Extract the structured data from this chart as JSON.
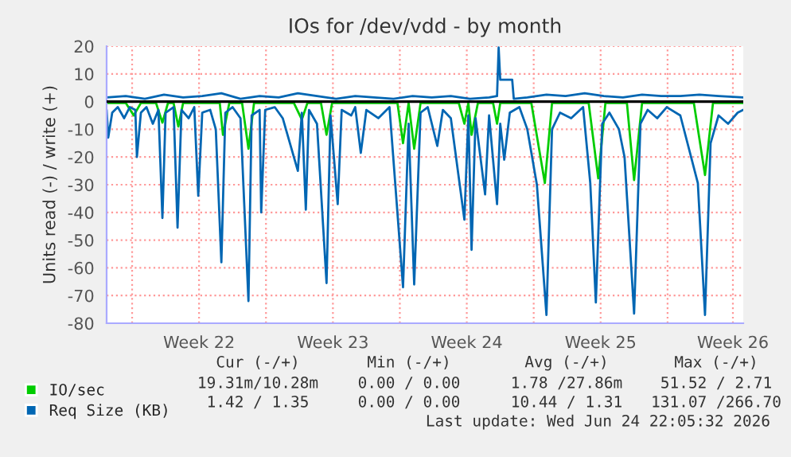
{
  "chart_data": {
    "type": "line",
    "title": "IOs for /dev/vdd - by month",
    "ylabel": "Units read (-) / write (+)",
    "xlim": [
      "2026-05-23T16:00",
      "2026-06-25T23:00"
    ],
    "xticks": [
      {
        "value": "2026-05-25",
        "label": null
      },
      {
        "value": "2026-05-28T12:00",
        "label": "Week 22"
      },
      {
        "value": "2026-06-01",
        "label": null
      },
      {
        "value": "2026-06-04T12:00",
        "label": "Week 23"
      },
      {
        "value": "2026-06-08",
        "label": null
      },
      {
        "value": "2026-06-11T12:00",
        "label": "Week 24"
      },
      {
        "value": "2026-06-15",
        "label": null
      },
      {
        "value": "2026-06-18T12:00",
        "label": "Week 25"
      },
      {
        "value": "2026-06-22",
        "label": null
      },
      {
        "value": "2026-06-25T10:00",
        "label": "Week 26"
      }
    ],
    "ylim": [
      -80,
      20
    ],
    "yticks": [
      -80,
      -70,
      -60,
      -50,
      -40,
      -30,
      -20,
      -10,
      0,
      10,
      20
    ],
    "grid": true,
    "legend": "bottom left",
    "ref_lines": [
      {
        "axis": "y",
        "value": 0,
        "label": null,
        "color": "#000000"
      }
    ],
    "series": [
      {
        "name": "IO/sec",
        "color": "#00cc00",
        "x": [
          "2026-05-23T16:00",
          "2026-05-24T16:00",
          "2026-05-25T02:00",
          "2026-05-25T11:00",
          "2026-05-26T06:00",
          "2026-05-26T14:00",
          "2026-05-26T21:00",
          "2026-05-27T04:00",
          "2026-05-27T10:00",
          "2026-05-27T16:00",
          "2026-05-29T04:00",
          "2026-05-29T14:00",
          "2026-05-29T18:00",
          "2026-05-30T02:00",
          "2026-05-30T18:00",
          "2026-05-31T02:00",
          "2026-05-31T09:00",
          "2026-06-02T11:00",
          "2026-06-02T21:00",
          "2026-06-03T04:00",
          "2026-06-03T21:00",
          "2026-06-04T04:00",
          "2026-06-04T11:00",
          "2026-06-07T21:00",
          "2026-06-08T04:00",
          "2026-06-08T11:00",
          "2026-06-08T18:00",
          "2026-06-09T02:00",
          "2026-06-11T02:00",
          "2026-06-11T09:00",
          "2026-06-11T14:00",
          "2026-06-11T18:00",
          "2026-06-12T02:00",
          "2026-06-12T21:00",
          "2026-06-13T02:00",
          "2026-06-13T06:00",
          "2026-06-14T21:00",
          "2026-06-15T14:00",
          "2026-06-15T23:00",
          "2026-06-17T21:00",
          "2026-06-18T09:00",
          "2026-06-18T18:00",
          "2026-06-19T21:00",
          "2026-06-20T06:00",
          "2026-06-20T16:00",
          "2026-06-23T09:00",
          "2026-06-23T23:00",
          "2026-06-24T09:00",
          "2026-06-25T23:00"
        ],
        "values": [
          -0.5,
          -0.5,
          -5,
          -0.5,
          -0.5,
          -7.6,
          -0.5,
          -0.5,
          -9,
          -0.5,
          -0.5,
          -0.5,
          -12,
          -0.5,
          -0.5,
          -17,
          -0.5,
          -0.5,
          -6.5,
          -0.5,
          -0.5,
          -12,
          -0.5,
          -0.5,
          -15,
          -0.5,
          -17,
          -0.5,
          -0.5,
          -8,
          -0.5,
          -12,
          -0.5,
          -0.5,
          -8,
          -0.5,
          -0.5,
          -29.4,
          -0.5,
          -0.5,
          -27.7,
          -0.5,
          -0.5,
          -28.3,
          -0.5,
          -0.5,
          -26.5,
          -0.5,
          -0.5
        ]
      },
      {
        "name": "Req Size (KB)",
        "color": "#0066b3",
        "x": [
          "2026-05-23T16:00",
          "2026-05-23T18:00",
          "2026-05-23T23:00",
          "2026-05-24T06:00",
          "2026-05-24T14:00",
          "2026-05-24T21:00",
          "2026-05-25T04:00",
          "2026-05-25T06:00",
          "2026-05-25T11:00",
          "2026-05-25T18:00",
          "2026-05-26T02:00",
          "2026-05-26T09:00",
          "2026-05-26T14:00",
          "2026-05-26T18:00",
          "2026-05-27T04:00",
          "2026-05-27T09:00",
          "2026-05-27T14:00",
          "2026-05-27T23:00",
          "2026-05-28T06:00",
          "2026-05-28T11:00",
          "2026-05-28T16:00",
          "2026-05-29T02:00",
          "2026-05-29T09:00",
          "2026-05-29T16:00",
          "2026-05-29T21:00",
          "2026-05-30T06:00",
          "2026-05-30T16:00",
          "2026-05-31T02:00",
          "2026-05-31T06:00",
          "2026-05-31T16:00",
          "2026-05-31T18:00",
          "2026-05-31T23:00",
          "2026-06-01T11:00",
          "2026-06-01T21:00",
          "2026-06-02T16:00",
          "2026-06-02T21:00",
          "2026-06-03T02:00",
          "2026-06-03T06:00",
          "2026-06-03T16:00",
          "2026-06-04T04:00",
          "2026-06-04T09:00",
          "2026-06-04T18:00",
          "2026-06-04T23:00",
          "2026-06-05T11:00",
          "2026-06-05T16:00",
          "2026-06-05T23:00",
          "2026-06-06T06:00",
          "2026-06-06T21:00",
          "2026-06-07T11:00",
          "2026-06-08T04:00",
          "2026-06-08T11:00",
          "2026-06-08T18:00",
          "2026-06-09T02:00",
          "2026-06-09T11:00",
          "2026-06-09T23:00",
          "2026-06-10T06:00",
          "2026-06-10T16:00",
          "2026-06-11T09:00",
          "2026-06-11T14:00",
          "2026-06-11T18:00",
          "2026-06-11T23:00",
          "2026-06-12T11:00",
          "2026-06-12T16:00",
          "2026-06-13T02:00",
          "2026-06-13T06:00",
          "2026-06-13T11:00",
          "2026-06-13T18:00",
          "2026-06-14T06:00",
          "2026-06-14T16:00",
          "2026-06-15T04:00",
          "2026-06-15T16:00",
          "2026-06-15T23:00",
          "2026-06-16T09:00",
          "2026-06-16T23:00",
          "2026-06-17T14:00",
          "2026-06-17T23:00",
          "2026-06-18T06:00",
          "2026-06-18T14:00",
          "2026-06-18T23:00",
          "2026-06-19T11:00",
          "2026-06-19T18:00",
          "2026-06-20T06:00",
          "2026-06-20T14:00",
          "2026-06-20T23:00",
          "2026-06-21T11:00",
          "2026-06-21T23:00",
          "2026-06-22T16:00",
          "2026-06-23T14:00",
          "2026-06-23T23:00",
          "2026-06-24T06:00",
          "2026-06-24T16:00",
          "2026-06-25T04:00",
          "2026-06-25T16:00",
          "2026-06-25T23:00"
        ],
        "values": [
          -3,
          -13,
          -4,
          -2,
          -6,
          -2,
          -3,
          -20,
          -4,
          -2,
          -8,
          -3,
          -42,
          -4,
          -2,
          -45.5,
          -3,
          -6,
          -2,
          -34,
          -4,
          -3,
          -10,
          -58,
          -4,
          -2,
          -6,
          -72,
          -5,
          -3,
          -40,
          -3,
          -2,
          -6,
          -25,
          -4,
          -39,
          -3,
          -8,
          -65.5,
          -5,
          -37,
          -3,
          -5,
          -2,
          -18.5,
          -3,
          -6,
          -2,
          -67,
          -8,
          -66,
          -4,
          -2,
          -16,
          -3,
          -6,
          -42.6,
          -5,
          -53.5,
          -6,
          -33.5,
          -5,
          -37,
          -8,
          -21,
          -4,
          -2,
          -10,
          -30,
          -77,
          -10,
          -4,
          -6,
          -2,
          -29.4,
          -72.5,
          -8,
          -4,
          -10,
          -20,
          -76.5,
          -8,
          -3,
          -6,
          -2,
          -5,
          -29.4,
          -77,
          -15,
          -5,
          -8,
          -4,
          -3
        ]
      },
      {
        "color": "#0066b3",
        "x": [
          "2026-05-23T16:00",
          "2026-05-24T16:00",
          "2026-05-25T16:00",
          "2026-05-26T16:00",
          "2026-05-27T16:00",
          "2026-05-28T16:00",
          "2026-05-29T16:00",
          "2026-05-30T16:00",
          "2026-05-31T16:00",
          "2026-06-01T16:00",
          "2026-06-02T16:00",
          "2026-06-03T16:00",
          "2026-06-04T16:00",
          "2026-06-05T16:00",
          "2026-06-06T16:00",
          "2026-06-07T16:00",
          "2026-06-08T16:00",
          "2026-06-09T16:00",
          "2026-06-10T16:00",
          "2026-06-11T16:00",
          "2026-06-12T16:00",
          "2026-06-13T02:00",
          "2026-06-13T04:00",
          "2026-06-13T06:00",
          "2026-06-13T21:00",
          "2026-06-13T23:00",
          "2026-06-14T16:00",
          "2026-06-15T16:00",
          "2026-06-16T16:00",
          "2026-06-17T16:00",
          "2026-06-18T16:00",
          "2026-06-19T16:00",
          "2026-06-20T16:00",
          "2026-06-21T16:00",
          "2026-06-22T16:00",
          "2026-06-23T16:00",
          "2026-06-24T16:00",
          "2026-06-25T23:00"
        ],
        "values": [
          1.5,
          2,
          1,
          2.5,
          1.5,
          2,
          3,
          1,
          2,
          1.5,
          3,
          2,
          1,
          2,
          1.5,
          1,
          2,
          1.5,
          2,
          1,
          1.5,
          2,
          19.5,
          7.9,
          7.9,
          1,
          1.5,
          2.5,
          2,
          3,
          2,
          1.5,
          2.5,
          2,
          2,
          2.5,
          2,
          1.5
        ]
      }
    ],
    "annotations": [
      "Cur (-/+)",
      "Min (-/+)",
      "Avg (-/+)",
      "Max (-/+)",
      "19.31m/10.28m",
      "0.00 / 0.00",
      "1.78 /27.86m",
      "51.52 / 2.71",
      "1.42 / 1.35",
      "0.00 / 0.00",
      "10.44 / 1.31",
      "131.07 /266.70",
      "Last update: Wed Jun 24 22:05:32 2026"
    ]
  }
}
